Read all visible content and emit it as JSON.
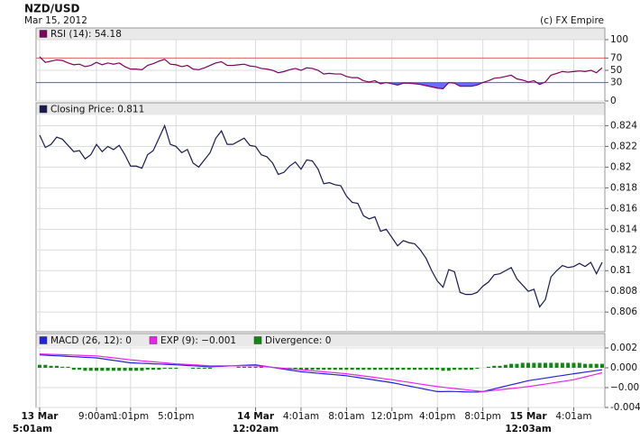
{
  "header": {
    "title": "NZD/USD",
    "date": "Mar 15, 2012",
    "credit": "(c) FX Empire"
  },
  "chart_data": [
    {
      "type": "line",
      "series": [
        {
          "name": "RSI (14): 54.18",
          "color": "#800060",
          "values": [
            72,
            63,
            65,
            67,
            66,
            62,
            59,
            60,
            56,
            58,
            63,
            59,
            62,
            60,
            62,
            56,
            52,
            52,
            51,
            58,
            61,
            65,
            68,
            60,
            59,
            56,
            58,
            52,
            51,
            54,
            58,
            62,
            64,
            58,
            58,
            59,
            60,
            57,
            56,
            53,
            52,
            50,
            46,
            48,
            51,
            53,
            50,
            54,
            53,
            50,
            44,
            45,
            44,
            44,
            40,
            38,
            38,
            33,
            31,
            33,
            28,
            30,
            28,
            26,
            29,
            29,
            28,
            27,
            25,
            23,
            21,
            20,
            30,
            29,
            24,
            24,
            24,
            26,
            30,
            33,
            37,
            38,
            40,
            42,
            36,
            34,
            31,
            33,
            27,
            31,
            42,
            45,
            48,
            47,
            48,
            49,
            48,
            50,
            46,
            54.18
          ]
        }
      ],
      "ylim": [
        0,
        100
      ],
      "yticks": [
        0,
        30,
        50,
        70,
        100
      ],
      "reference_lines": [
        {
          "value": 70,
          "color": "#e06060"
        },
        {
          "value": 30,
          "color": "#5555ff",
          "fill": "#6a6aff"
        }
      ],
      "grid": true
    },
    {
      "type": "line",
      "series": [
        {
          "name": "Closing Price: 0.811",
          "color": "#1a1a50",
          "values": [
            0.8231,
            0.8219,
            0.8222,
            0.8229,
            0.8227,
            0.8221,
            0.8215,
            0.8216,
            0.8208,
            0.8212,
            0.8222,
            0.8215,
            0.822,
            0.8217,
            0.8221,
            0.8212,
            0.8201,
            0.8201,
            0.8199,
            0.8212,
            0.8216,
            0.8228,
            0.824,
            0.8222,
            0.822,
            0.8214,
            0.8217,
            0.8204,
            0.82,
            0.8207,
            0.8214,
            0.8228,
            0.8235,
            0.8222,
            0.8222,
            0.8225,
            0.8228,
            0.8221,
            0.822,
            0.8212,
            0.821,
            0.8204,
            0.8193,
            0.8195,
            0.8201,
            0.8205,
            0.8198,
            0.8207,
            0.8206,
            0.8198,
            0.8184,
            0.8185,
            0.8183,
            0.8182,
            0.8172,
            0.8166,
            0.8165,
            0.8153,
            0.815,
            0.8152,
            0.8138,
            0.814,
            0.8132,
            0.8124,
            0.8129,
            0.8127,
            0.8126,
            0.812,
            0.8112,
            0.81,
            0.809,
            0.8084,
            0.8101,
            0.8099,
            0.8079,
            0.8077,
            0.8077,
            0.8079,
            0.8085,
            0.8089,
            0.8096,
            0.8097,
            0.81,
            0.8103,
            0.8092,
            0.8086,
            0.808,
            0.8082,
            0.8065,
            0.8072,
            0.8094,
            0.81,
            0.8105,
            0.8103,
            0.8104,
            0.8107,
            0.8104,
            0.8108,
            0.8097,
            0.8108
          ]
        }
      ],
      "ylim": [
        0.8041,
        0.825
      ],
      "yticks": [
        0.806,
        0.808,
        0.81,
        0.812,
        0.814,
        0.816,
        0.818,
        0.82,
        0.822,
        0.824
      ],
      "grid": true
    },
    {
      "type": "line",
      "categories": [
        "13 Mar\n5:01am",
        null,
        null,
        null,
        null,
        null,
        null,
        null,
        null,
        null,
        "9:00am",
        null,
        null,
        null,
        null,
        null,
        "1:01pm",
        null,
        null,
        null,
        null,
        null,
        null,
        null,
        "5:01pm",
        null,
        null,
        null,
        null,
        null,
        null,
        null,
        null,
        null,
        null,
        null,
        null,
        null,
        "14 Mar\n12:02am",
        null,
        null,
        null,
        null,
        null,
        null,
        null,
        "4:01am",
        null,
        null,
        null,
        null,
        null,
        null,
        null,
        "8:01am",
        null,
        null,
        null,
        null,
        null,
        null,
        null,
        "12:01pm",
        null,
        null,
        null,
        null,
        null,
        null,
        null,
        "4:01pm",
        null,
        null,
        null,
        null,
        null,
        null,
        null,
        "8:01pm",
        null,
        null,
        null,
        null,
        null,
        null,
        null,
        "15 Mar\n12:03am",
        null,
        null,
        null,
        null,
        null,
        null,
        null,
        "4:01am",
        null,
        null,
        null,
        null,
        null
      ],
      "series": [
        {
          "name": "MACD (26, 12): 0",
          "color": "#2222dd",
          "type": "line",
          "values": [
            0.0013,
            0.00127,
            0.00124,
            0.00121,
            0.00118,
            0.00115,
            0.00112,
            0.00109,
            0.00106,
            0.00103,
            0.001,
            0.00092,
            0.00083,
            0.00075,
            0.00067,
            0.00058,
            0.0005,
            0.00048,
            0.00045,
            0.00043,
            0.0004,
            0.00038,
            0.00035,
            0.00033,
            0.0003,
            0.00027,
            0.00023,
            0.0002,
            0.00017,
            0.00013,
            0.0001,
            0.00013,
            0.00015,
            0.00018,
            0.0002,
            0.00023,
            0.00025,
            0.00028,
            0.0003,
            0.00021,
            0.00013,
            4e-05,
            -5e-05,
            -0.00014,
            -0.00023,
            -0.00031,
            -0.0004,
            -0.00045,
            -0.0005,
            -0.00055,
            -0.0006,
            -0.00065,
            -0.0007,
            -0.00075,
            -0.0008,
            -0.00089,
            -0.00098,
            -0.00106,
            -0.00115,
            -0.00124,
            -0.00133,
            -0.00141,
            -0.0015,
            -0.00161,
            -0.00173,
            -0.00184,
            -0.00195,
            -0.00206,
            -0.00218,
            -0.00229,
            -0.0024,
            -0.0024,
            -0.00238,
            -0.00239,
            -0.00241,
            -0.00243,
            -0.00245,
            -0.00244,
            -0.0024,
            -0.00226,
            -0.00213,
            -0.00199,
            -0.00185,
            -0.00171,
            -0.00158,
            -0.00144,
            -0.0013,
            -0.00121,
            -0.00113,
            -0.00104,
            -0.00095,
            -0.00086,
            -0.00078,
            -0.00069,
            -0.0006,
            -0.00052,
            -0.00044,
            -0.00036,
            -0.00028,
            -0.0002
          ]
        },
        {
          "name": "EXP (9): −0.001",
          "color": "#ee22ee",
          "type": "line",
          "values": [
            0.0014,
            0.00138,
            0.00136,
            0.00134,
            0.00132,
            0.0013,
            0.00128,
            0.00126,
            0.00124,
            0.00122,
            0.0012,
            0.00113,
            0.00107,
            0.001,
            0.00093,
            0.00087,
            0.0008,
            0.00075,
            0.0007,
            0.00065,
            0.0006,
            0.00055,
            0.0005,
            0.00045,
            0.0004,
            0.00037,
            0.00033,
            0.0003,
            0.00027,
            0.00023,
            0.0002,
            0.0002,
            0.0002,
            0.0002,
            0.0002,
            0.0002,
            0.0002,
            0.0002,
            0.0002,
            0.00015,
            0.0001,
            5e-05,
            0,
            -5e-05,
            -0.0001,
            -0.00015,
            -0.0002,
            -0.00025,
            -0.0003,
            -0.00035,
            -0.0004,
            -0.00045,
            -0.0005,
            -0.00055,
            -0.0006,
            -0.00068,
            -0.00075,
            -0.00083,
            -0.0009,
            -0.00098,
            -0.00105,
            -0.00113,
            -0.0012,
            -0.00129,
            -0.00138,
            -0.00146,
            -0.00155,
            -0.00164,
            -0.00173,
            -0.00181,
            -0.0019,
            -0.00196,
            -0.00203,
            -0.00209,
            -0.00215,
            -0.00221,
            -0.00228,
            -0.00234,
            -0.0024,
            -0.00234,
            -0.00228,
            -0.00221,
            -0.00215,
            -0.00209,
            -0.00203,
            -0.00196,
            -0.0019,
            -0.00181,
            -0.00173,
            -0.00164,
            -0.00155,
            -0.00146,
            -0.00138,
            -0.00129,
            -0.0012,
            -0.00106,
            -0.00092,
            -0.00078,
            -0.00064,
            -0.0005
          ]
        },
        {
          "name": "Divergence: 0",
          "color": "#118811",
          "type": "bar",
          "values": [
            0.0003,
            0.0003,
            0.0002,
            0.0002,
            0.0001,
            0.0001,
            -0.0002,
            -0.0002,
            -0.0003,
            -0.0003,
            -0.0003,
            -0.0003,
            -0.0003,
            -0.0003,
            -0.0003,
            -0.0003,
            -0.0003,
            -0.0003,
            -0.0003,
            -0.0002,
            -0.0002,
            -0.0002,
            -0.0001,
            -0.0001,
            -0.0001,
            0,
            0,
            -0.0001,
            -0.0001,
            -0.0001,
            -0.0001,
            0,
            0,
            0,
            0,
            0.0001,
            0.0001,
            0.0001,
            0.0001,
            0.0001,
            0,
            0,
            -0.0001,
            -0.0001,
            -0.0001,
            -0.0001,
            -0.0002,
            -0.0002,
            -0.0002,
            -0.0002,
            -0.0002,
            -0.0002,
            -0.0002,
            -0.0002,
            -0.0002,
            -0.0002,
            -0.0002,
            -0.0002,
            -0.0002,
            -0.0002,
            -0.0002,
            -0.0002,
            -0.0002,
            -0.0002,
            -0.0002,
            -0.0002,
            -0.0002,
            -0.0002,
            -0.0002,
            -0.0002,
            -0.0002,
            -0.0003,
            -0.0003,
            -0.0002,
            -0.0002,
            -0.0002,
            -0.0002,
            -0.0001,
            0,
            0.0001,
            0.0002,
            0.0002,
            0.0003,
            0.0004,
            0.0004,
            0.0005,
            0.0005,
            0.0005,
            0.0005,
            0.0005,
            0.0005,
            0.0005,
            0.0005,
            0.0005,
            0.0005,
            0.0005,
            0.0004,
            0.0004,
            0.0004,
            0.0004
          ]
        }
      ],
      "ylim": [
        -0.004,
        0.002
      ],
      "yticks": [
        -0.004,
        {
          "value": -0.004,
          "label": "−0.004"
        },
        {
          "value": -0.002,
          "label": "−0.002"
        },
        {
          "value": 0,
          "label": "0.000"
        },
        0.002
      ],
      "grid": true
    }
  ]
}
